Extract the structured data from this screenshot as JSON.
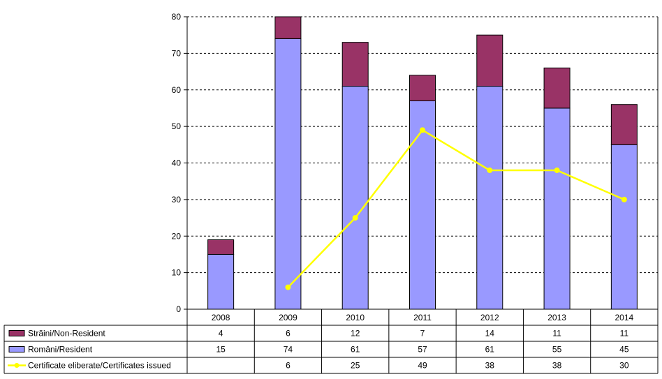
{
  "chart_data": {
    "type": "bar",
    "categories": [
      "2008",
      "2009",
      "2010",
      "2011",
      "2012",
      "2013",
      "2014"
    ],
    "ylim": [
      0,
      80
    ],
    "yticks": [
      0,
      10,
      20,
      30,
      40,
      50,
      60,
      70,
      80
    ],
    "grid": true,
    "legend_position": "data-table-left",
    "series": [
      {
        "name": "Străini/Non-Resident",
        "kind": "bar",
        "stack": "bottom-to-top-2",
        "color": "#993366",
        "values": [
          4,
          6,
          12,
          7,
          14,
          11,
          11
        ]
      },
      {
        "name": "Români/Resident",
        "kind": "bar",
        "stack": "bottom-to-top-1",
        "color": "#9999FF",
        "values": [
          15,
          74,
          61,
          57,
          61,
          55,
          45
        ]
      },
      {
        "name": "Certificate eliberate/Certificates issued",
        "kind": "line",
        "color": "#FFFF00",
        "values": [
          null,
          6,
          25,
          49,
          38,
          38,
          30
        ]
      }
    ]
  }
}
